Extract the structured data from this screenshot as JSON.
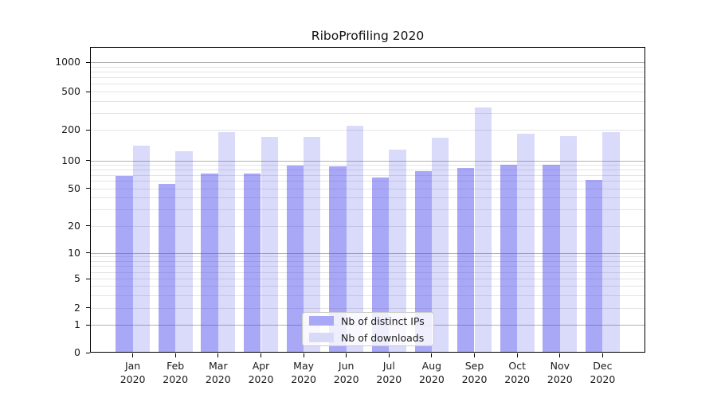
{
  "chart_data": {
    "type": "bar",
    "title": "RiboProfiling 2020",
    "categories": [
      "Jan 2020",
      "Feb 2020",
      "Mar 2020",
      "Apr 2020",
      "May 2020",
      "Jun 2020",
      "Jul 2020",
      "Aug 2020",
      "Sep 2020",
      "Oct 2020",
      "Nov 2020",
      "Dec 2020"
    ],
    "series": [
      {
        "name": "Nb of distinct IPs",
        "color": "#a8a8f6",
        "bar_fill": "rgba(70,70,235,0.47)",
        "values": [
          68,
          56,
          73,
          72,
          88,
          86,
          65,
          76,
          83,
          90,
          89,
          62
        ]
      },
      {
        "name": "Nb of downloads",
        "color": "#d9d9f8",
        "bar_fill": "rgba(70,70,235,0.20)",
        "values": [
          140,
          123,
          190,
          172,
          172,
          220,
          127,
          169,
          345,
          183,
          175,
          190
        ]
      }
    ],
    "xlabel": "",
    "ylabel": "",
    "yscale": "symlog",
    "ylim": [
      0,
      1000
    ],
    "y_ticks": [
      0,
      1,
      2,
      5,
      10,
      20,
      50,
      100,
      200,
      500,
      1000
    ],
    "grid": "horizontal major + log minor gridlines",
    "legend_position": "lower center"
  }
}
